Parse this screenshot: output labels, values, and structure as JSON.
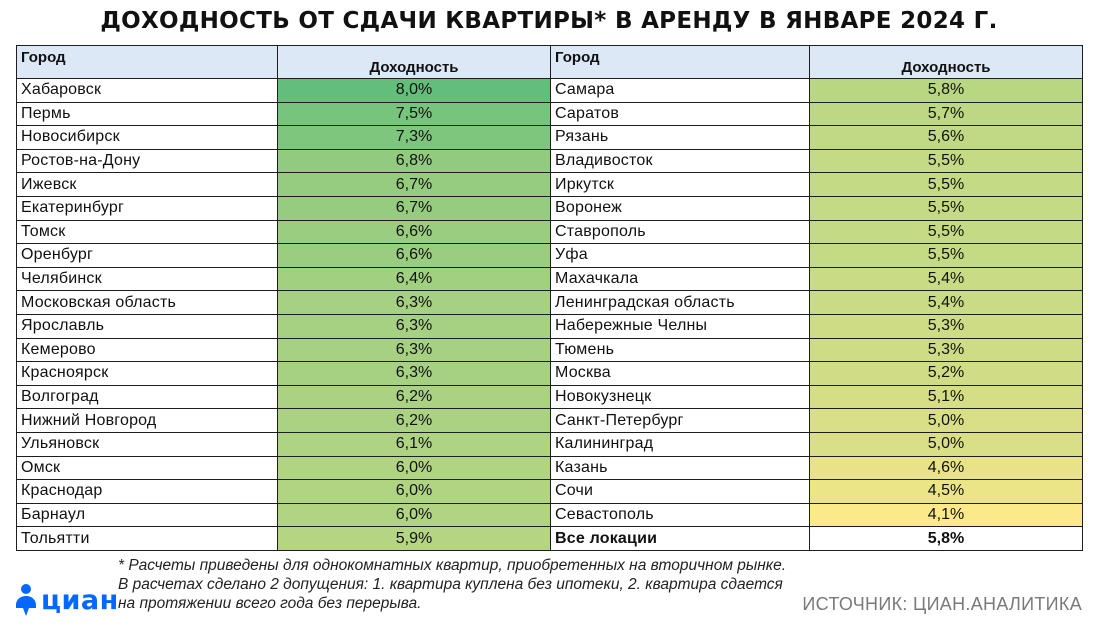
{
  "title": "ДОХОДНОСТЬ ОТ СДАЧИ КВАРТИРЫ* В АРЕНДУ В ЯНВАРЕ 2024 Г.",
  "headers": {
    "city": "Город",
    "yield": "Доходность"
  },
  "chart_data": {
    "type": "table",
    "columns": [
      "Город",
      "Доходность"
    ],
    "unit": "%",
    "left_rows": [
      {
        "city": "Хабаровск",
        "value": 8.0,
        "label": "8,0%"
      },
      {
        "city": "Пермь",
        "value": 7.5,
        "label": "7,5%"
      },
      {
        "city": "Новосибирск",
        "value": 7.3,
        "label": "7,3%"
      },
      {
        "city": "Ростов-на-Дону",
        "value": 6.8,
        "label": "6,8%"
      },
      {
        "city": "Ижевск",
        "value": 6.7,
        "label": "6,7%"
      },
      {
        "city": "Екатеринбург",
        "value": 6.7,
        "label": "6,7%"
      },
      {
        "city": "Томск",
        "value": 6.6,
        "label": "6,6%"
      },
      {
        "city": "Оренбург",
        "value": 6.6,
        "label": "6,6%"
      },
      {
        "city": "Челябинск",
        "value": 6.4,
        "label": "6,4%"
      },
      {
        "city": "Московская область",
        "value": 6.3,
        "label": "6,3%"
      },
      {
        "city": "Ярославль",
        "value": 6.3,
        "label": "6,3%"
      },
      {
        "city": "Кемерово",
        "value": 6.3,
        "label": "6,3%"
      },
      {
        "city": "Красноярск",
        "value": 6.3,
        "label": "6,3%"
      },
      {
        "city": "Волгоград",
        "value": 6.2,
        "label": "6,2%"
      },
      {
        "city": "Нижний Новгород",
        "value": 6.2,
        "label": "6,2%"
      },
      {
        "city": "Ульяновск",
        "value": 6.1,
        "label": "6,1%"
      },
      {
        "city": "Омск",
        "value": 6.0,
        "label": "6,0%"
      },
      {
        "city": "Краснодар",
        "value": 6.0,
        "label": "6,0%"
      },
      {
        "city": "Барнаул",
        "value": 6.0,
        "label": "6,0%"
      },
      {
        "city": "Тольятти",
        "value": 5.9,
        "label": "5,9%"
      }
    ],
    "right_rows": [
      {
        "city": "Самара",
        "value": 5.8,
        "label": "5,8%"
      },
      {
        "city": "Саратов",
        "value": 5.7,
        "label": "5,7%"
      },
      {
        "city": "Рязань",
        "value": 5.6,
        "label": "5,6%"
      },
      {
        "city": "Владивосток",
        "value": 5.5,
        "label": "5,5%"
      },
      {
        "city": "Иркутск",
        "value": 5.5,
        "label": "5,5%"
      },
      {
        "city": "Воронеж",
        "value": 5.5,
        "label": "5,5%"
      },
      {
        "city": "Ставрополь",
        "value": 5.5,
        "label": "5,5%"
      },
      {
        "city": "Уфа",
        "value": 5.5,
        "label": "5,5%"
      },
      {
        "city": "Махачкала",
        "value": 5.4,
        "label": "5,4%"
      },
      {
        "city": "Ленинградская область",
        "value": 5.4,
        "label": "5,4%"
      },
      {
        "city": "Набережные Челны",
        "value": 5.3,
        "label": "5,3%"
      },
      {
        "city": "Тюмень",
        "value": 5.3,
        "label": "5,3%"
      },
      {
        "city": "Москва",
        "value": 5.2,
        "label": "5,2%"
      },
      {
        "city": "Новокузнецк",
        "value": 5.1,
        "label": "5,1%"
      },
      {
        "city": "Санкт-Петербург",
        "value": 5.0,
        "label": "5,0%"
      },
      {
        "city": "Калининград",
        "value": 5.0,
        "label": "5,0%"
      },
      {
        "city": "Казань",
        "value": 4.6,
        "label": "4,6%"
      },
      {
        "city": "Сочи",
        "value": 4.5,
        "label": "4,5%"
      },
      {
        "city": "Севастополь",
        "value": 4.1,
        "label": "4,1%"
      },
      {
        "city": "Все локации",
        "value": 5.8,
        "label": "5,8%",
        "total": true
      }
    ],
    "color_scale": {
      "min": 4.1,
      "max": 8.0,
      "low_color": "#fce98a",
      "high_color": "#63be7b"
    }
  },
  "footnote": "* Расчеты приведены для однокомнатных квартир, приобретенных на вторичном рынке. В расчетах сделано 2 допущения: 1. квартира куплена без ипотеки, 2. квартира сдается на протяжении всего года без перерыва.",
  "logo": {
    "text": "циан",
    "icon": "location-pin-person-icon",
    "color": "#0468ff"
  },
  "source": "ИСТОЧНИК: ЦИАН.АНАЛИТИКА"
}
